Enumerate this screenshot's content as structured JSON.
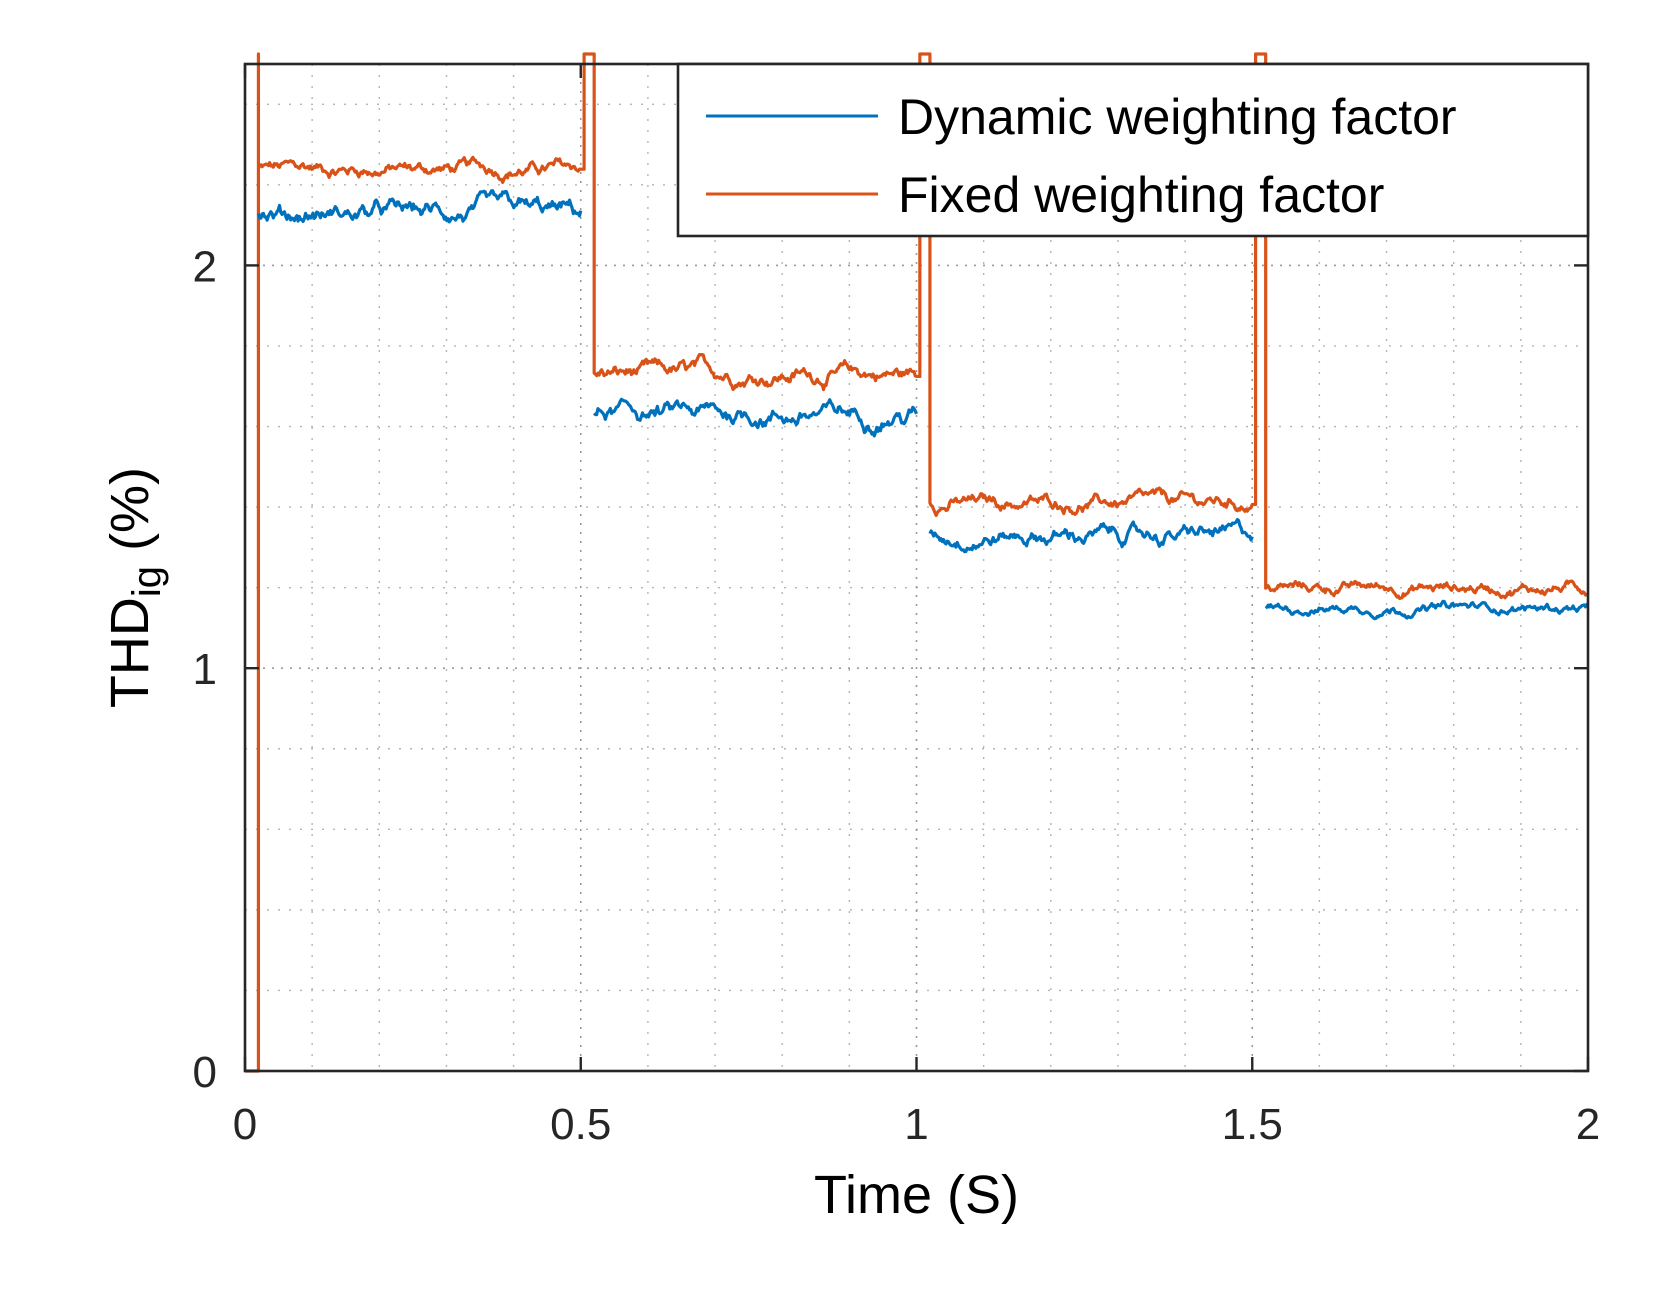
{
  "chart_data": {
    "type": "line",
    "title": "",
    "xlabel": "Time (S)",
    "ylabel": {
      "main": "THD",
      "subscript": "ig",
      "suffix": " (%)"
    },
    "xlim": [
      0,
      2
    ],
    "ylim": [
      0,
      2.5
    ],
    "xticks": [
      0,
      0.5,
      1,
      1.5,
      2
    ],
    "xtick_labels": [
      "0",
      "0.5",
      "1",
      "1.5",
      "2"
    ],
    "yticks": [
      0,
      1,
      2
    ],
    "ytick_labels": [
      "0",
      "1",
      "2"
    ],
    "grid": true,
    "minor_grid": true,
    "legend_position": "top-right",
    "series": [
      {
        "name": "Dynamic weighting factor",
        "color": "#0072BD",
        "segments": [
          {
            "x_start": 0.02,
            "x_end": 0.5,
            "level": 2.13,
            "noise": 0.04
          },
          {
            "x_start": 0.52,
            "x_end": 1.0,
            "level": 1.63,
            "noise": 0.04
          },
          {
            "x_start": 1.02,
            "x_end": 1.5,
            "level": 1.33,
            "noise": 0.035
          },
          {
            "x_start": 1.52,
            "x_end": 2.0,
            "level": 1.15,
            "noise": 0.02
          }
        ]
      },
      {
        "name": "Fixed weighting factor",
        "color": "#D95319",
        "segments": [
          {
            "x_start": 0.02,
            "x_end": 0.5,
            "level": 2.24,
            "noise": 0.03
          },
          {
            "x_start": 0.52,
            "x_end": 1.0,
            "level": 1.73,
            "noise": 0.035
          },
          {
            "x_start": 1.02,
            "x_end": 1.5,
            "level": 1.41,
            "noise": 0.03
          },
          {
            "x_start": 1.52,
            "x_end": 2.0,
            "level": 1.2,
            "noise": 0.025
          }
        ],
        "spikes": [
          0.02,
          0.505,
          1.005,
          1.505
        ]
      }
    ]
  }
}
